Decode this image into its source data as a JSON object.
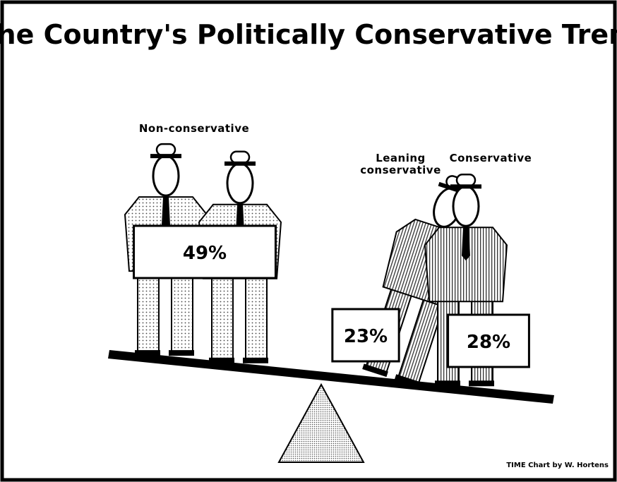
{
  "chart_data": {
    "type": "pictograph",
    "title": "The Country's Politically Conservative Trend",
    "categories": [
      "Non-conservative",
      "Leaning conservative",
      "Conservative"
    ],
    "values": [
      49,
      23,
      28
    ],
    "value_labels": [
      "49%",
      "23%",
      "28%"
    ],
    "credit": "TIME Chart by W. Hortens"
  }
}
